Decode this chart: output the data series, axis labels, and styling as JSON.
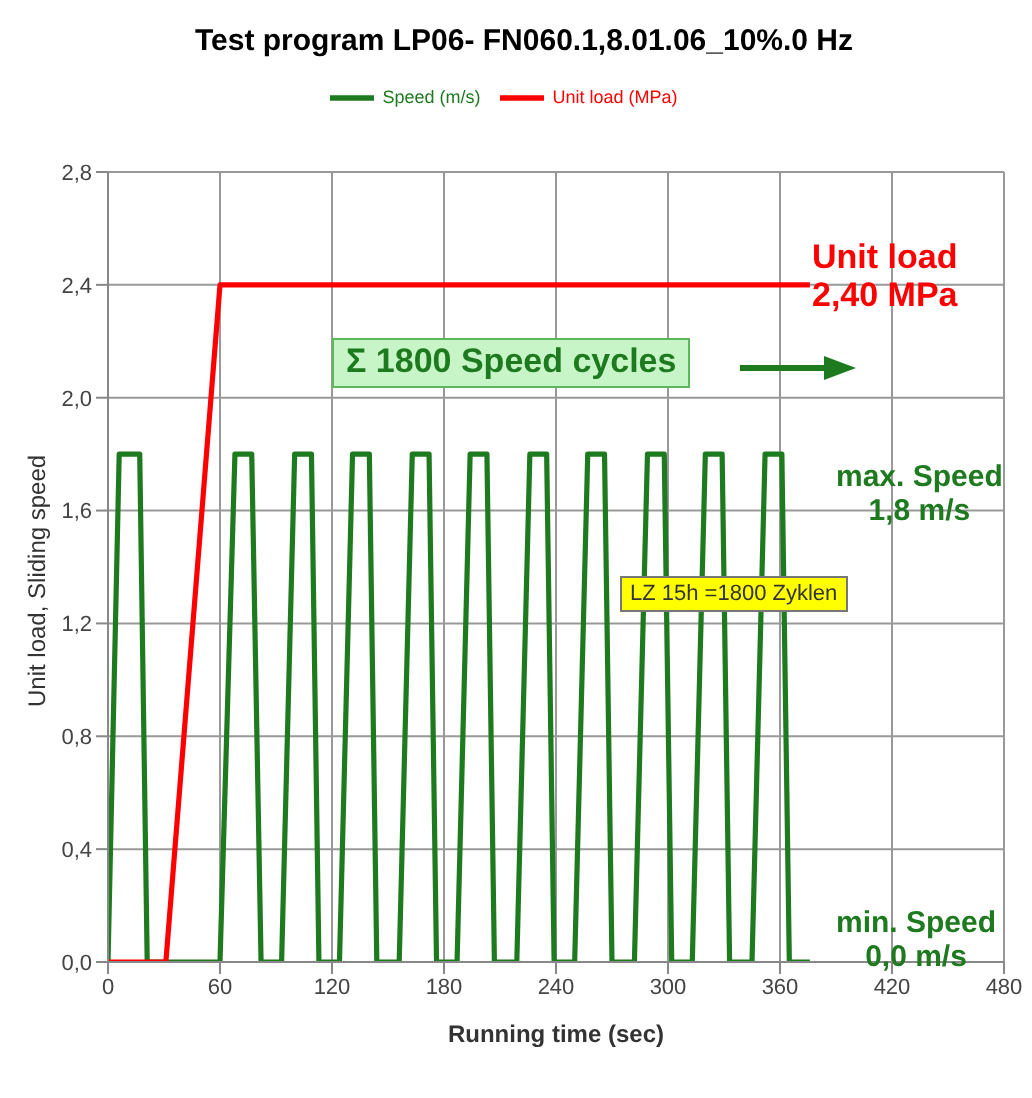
{
  "chart_data": {
    "type": "line",
    "title": "Test program LP06- FN060.1,8.01.06_10%.0 Hz",
    "xlabel": "Running time (sec)",
    "ylabel": "Unit load, Sliding speed",
    "series": [
      {
        "name": "Speed (m/s)",
        "color": "#1e7a1e",
        "x": [
          0,
          6,
          17,
          21,
          60,
          68,
          77,
          82,
          93,
          100,
          109,
          113,
          124,
          131,
          140,
          144,
          156,
          163,
          172,
          176,
          187,
          194,
          203,
          207,
          219,
          226,
          235,
          239,
          250,
          257,
          266,
          270,
          282,
          289,
          298,
          302,
          313,
          320,
          329,
          333,
          345,
          352,
          361,
          365,
          376
        ],
        "values": [
          0,
          1.8,
          1.8,
          0,
          0,
          1.8,
          1.8,
          0,
          0,
          1.8,
          1.8,
          0,
          0,
          1.8,
          1.8,
          0,
          0,
          1.8,
          1.8,
          0,
          0,
          1.8,
          1.8,
          0,
          0,
          1.8,
          1.8,
          0,
          0,
          1.8,
          1.8,
          0,
          0,
          1.8,
          1.8,
          0,
          0,
          1.8,
          1.8,
          0,
          0,
          1.8,
          1.8,
          0,
          0
        ]
      },
      {
        "name": "Unit load (MPa)",
        "color": "#ff0000",
        "x": [
          0,
          31,
          60,
          376
        ],
        "values": [
          0,
          0,
          2.4,
          2.4
        ]
      }
    ],
    "xlim": [
      0,
      480
    ],
    "xticks": [
      0,
      60,
      120,
      180,
      240,
      300,
      360,
      420,
      480
    ],
    "ylim": [
      0,
      2.8
    ],
    "yticks": [
      {
        "value": 0,
        "label": "0,0"
      },
      {
        "value": 0.4,
        "label": "0,4"
      },
      {
        "value": 0.8,
        "label": "0,8"
      },
      {
        "value": 1.2,
        "label": "1,2"
      },
      {
        "value": 1.6,
        "label": "1,6"
      },
      {
        "value": 2,
        "label": "2,0"
      },
      {
        "value": 2.4,
        "label": "2,4"
      },
      {
        "value": 2.8,
        "label": "2,8"
      }
    ],
    "grid": true,
    "legend": "top",
    "marker": "none",
    "line_style": "solid",
    "annotations": [
      "Unit load\n2,40 MPa",
      "Σ 1800 Speed cycles",
      "max. Speed\n1,8 m/s",
      "LZ 15h =1800 Zyklen",
      "min. Speed\n0,0 m/s"
    ]
  }
}
